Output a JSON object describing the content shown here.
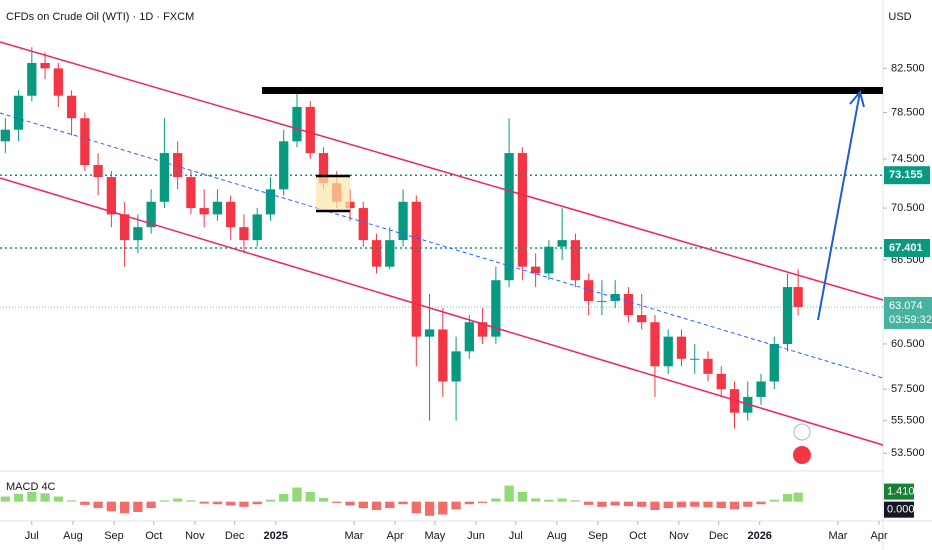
{
  "chart_data": {
    "type": "candlestick",
    "title": "CFDs on Crude Oil (WTI) · 1D · FXCM",
    "currency": "USD",
    "log_scale": true,
    "x": [
      -20,
      -10,
      0,
      10,
      20,
      30,
      40,
      50,
      60,
      70,
      80,
      90,
      100,
      110,
      120,
      130,
      140,
      150,
      160,
      170,
      180,
      190,
      200,
      210,
      220,
      230,
      240,
      250,
      260,
      270,
      280,
      290,
      300,
      310,
      320,
      330,
      340,
      350,
      360,
      370,
      380,
      390,
      400,
      410,
      420,
      430,
      440,
      450,
      460,
      470,
      480,
      490,
      500,
      510,
      520,
      530,
      540,
      550,
      560,
      570,
      578
    ],
    "open": [
      76,
      77,
      80,
      83,
      82.5,
      80,
      78,
      74,
      73,
      70,
      68,
      69,
      71,
      75,
      73,
      70.5,
      70,
      71,
      69,
      68,
      70,
      72,
      76,
      79,
      75,
      72.5,
      71,
      70.5,
      68,
      66,
      68,
      71,
      61,
      61.5,
      58,
      60,
      62,
      61,
      65,
      75,
      66,
      65.5,
      67.5,
      68,
      65,
      63.5,
      63.5,
      64,
      62.5,
      62,
      59,
      61,
      59.5,
      59.5,
      58.5,
      57.5,
      56,
      57,
      58,
      60.5,
      64.5
    ],
    "high": [
      78,
      80.5,
      84.5,
      84,
      83,
      80.5,
      78.5,
      75,
      73.5,
      71,
      70,
      72,
      78,
      76,
      73.5,
      72,
      72,
      71.5,
      70,
      70.5,
      73,
      77,
      80.5,
      79.5,
      75.5,
      73.5,
      72,
      71,
      68.5,
      69,
      72,
      71.5,
      64,
      63,
      61,
      62.5,
      63,
      66,
      78,
      75.5,
      67,
      68,
      70.5,
      68.5,
      65.5,
      65,
      65,
      64.5,
      64,
      62.5,
      61.5,
      61.5,
      60.5,
      60,
      59,
      58,
      58,
      58.5,
      61,
      65.5,
      65.8
    ],
    "low": [
      75,
      76,
      79.5,
      81.5,
      79,
      76.5,
      73.5,
      71.5,
      69,
      66,
      67,
      68.5,
      70.5,
      72,
      70,
      69,
      69.5,
      68,
      67,
      67.5,
      69.5,
      71.5,
      75.5,
      74.5,
      72,
      70.5,
      69.5,
      67.5,
      65.5,
      65.8,
      67.5,
      59,
      55.5,
      57,
      55.5,
      59.5,
      60.5,
      60.5,
      64.5,
      65,
      64.5,
      65,
      66.5,
      64.5,
      62.5,
      62.5,
      63,
      62,
      61.5,
      57,
      58.5,
      59,
      58.5,
      58,
      57,
      55,
      55.5,
      56.5,
      57.5,
      60,
      62.5
    ],
    "close": [
      77,
      80,
      83,
      82.5,
      80,
      78,
      74,
      73,
      70,
      68,
      69,
      71,
      75,
      73,
      70.5,
      70,
      71,
      69,
      68,
      70,
      72,
      76,
      79,
      75,
      72.5,
      71,
      70.5,
      68,
      66,
      68,
      71,
      61,
      61.5,
      58,
      60,
      62,
      61,
      65,
      75,
      66,
      65.5,
      67.5,
      68,
      65,
      63.5,
      63.5,
      64,
      62.5,
      62,
      59,
      61,
      59.5,
      59.5,
      58.5,
      57.5,
      56,
      57,
      58,
      60.5,
      64.5,
      63.074
    ],
    "up_color": "#089981",
    "down_color": "#f23645",
    "xlim": [
      -24,
      642
    ],
    "xticks": [
      {
        "value": 0,
        "label": "Jul"
      },
      {
        "value": 31,
        "label": "Aug"
      },
      {
        "value": 62,
        "label": "Sep"
      },
      {
        "value": 92,
        "label": "Oct"
      },
      {
        "value": 123,
        "label": "Nov"
      },
      {
        "value": 153,
        "label": "Dec"
      },
      {
        "value": 184,
        "label": "2025"
      },
      {
        "value": 243,
        "label": "Mar"
      },
      {
        "value": 274,
        "label": "Apr"
      },
      {
        "value": 304,
        "label": "May"
      },
      {
        "value": 335,
        "label": "Jun"
      },
      {
        "value": 365,
        "label": "Jul"
      },
      {
        "value": 396,
        "label": "Aug"
      },
      {
        "value": 427,
        "label": "Sep"
      },
      {
        "value": 457,
        "label": "Oct"
      },
      {
        "value": 488,
        "label": "Nov"
      },
      {
        "value": 518,
        "label": "Dec"
      },
      {
        "value": 549,
        "label": "2026"
      },
      {
        "value": 608,
        "label": "Mar"
      },
      {
        "value": 639,
        "label": "Apr"
      }
    ],
    "ylim": [
      52.5,
      89.1
    ],
    "yticks": [
      {
        "value": 82.5,
        "label": "82.500"
      },
      {
        "value": 78.5,
        "label": "78.500"
      },
      {
        "value": 74.5,
        "label": "74.500"
      },
      {
        "value": 70.5,
        "label": "70.500"
      },
      {
        "value": 66.5,
        "label": "66.500"
      },
      {
        "value": 60.5,
        "label": "60.500"
      },
      {
        "value": 57.5,
        "label": "57.500"
      },
      {
        "value": 55.5,
        "label": "55.500"
      },
      {
        "value": 53.5,
        "label": "53.500"
      }
    ],
    "levels": [
      73.155,
      67.401
    ],
    "level_color": "#089981",
    "countdown": "03:59:32",
    "macd": {
      "name": "MACD 4C",
      "values": [
        0.8,
        1.2,
        1.5,
        1.3,
        0.8,
        0.2,
        -0.5,
        -1.0,
        -1.5,
        -1.8,
        -1.6,
        -1.0,
        0.2,
        0.5,
        0.2,
        -0.3,
        -0.4,
        -0.6,
        -0.8,
        -0.4,
        0.3,
        1.2,
        2.2,
        1.5,
        0.6,
        -0.2,
        -0.6,
        -1.0,
        -1.3,
        -1.0,
        -0.4,
        -1.8,
        -2.2,
        -2.0,
        -1.2,
        -0.4,
        -0.2,
        0.5,
        2.5,
        1.5,
        0.5,
        0.3,
        0.5,
        0.2,
        -0.5,
        -0.8,
        -0.6,
        -0.7,
        -0.8,
        -1.3,
        -1.0,
        -0.9,
        -0.8,
        -0.9,
        -1.0,
        -1.2,
        -0.8,
        -0.4,
        0.3,
        1.2,
        1.41
      ],
      "ylim": [
        -2.85,
        4.3
      ],
      "yticks": [
        {
          "value": 1.41,
          "label": "1.410"
        },
        {
          "value": 0,
          "label": "0.000"
        }
      ],
      "up_color": "#7ed35f",
      "down_color": "#ef5350"
    }
  }
}
